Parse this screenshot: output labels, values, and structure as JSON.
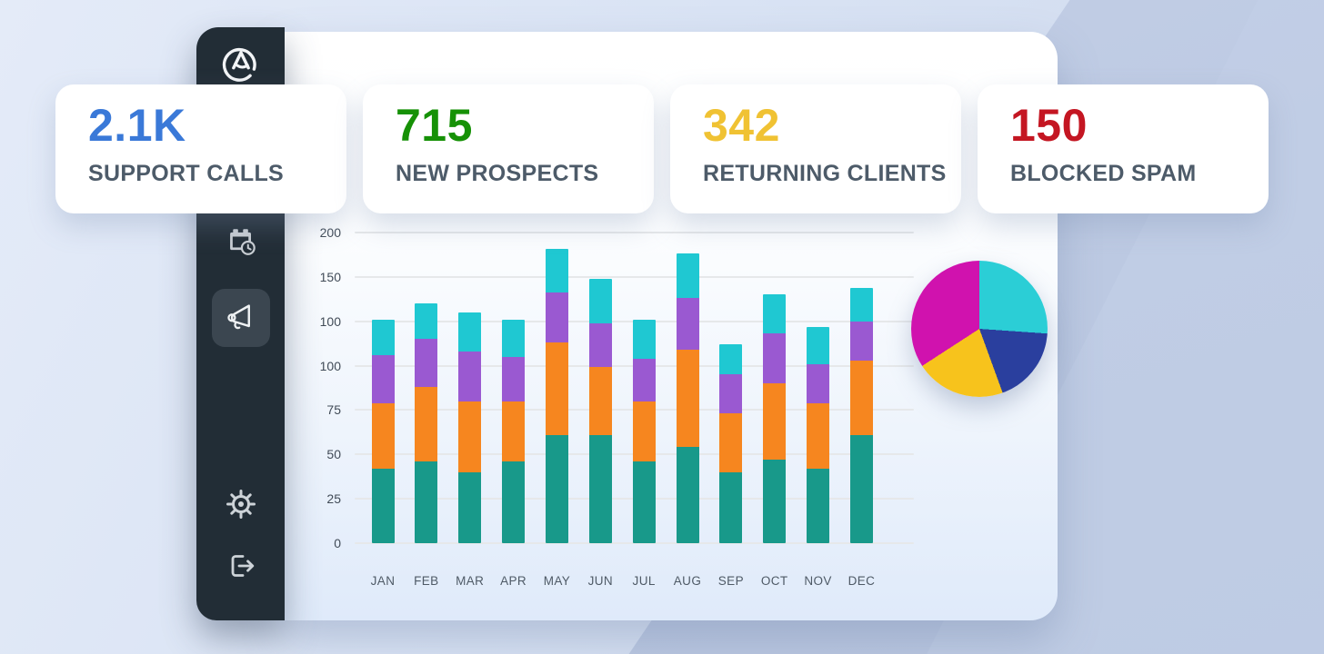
{
  "sidebar": {
    "background": "#222d36",
    "active_item_background": "#3b4650",
    "icon_color": "#cdd3d8",
    "items": [
      {
        "icon": "brand-logo-icon",
        "active": false
      },
      {
        "icon": "calendar-clock-icon",
        "active": false
      },
      {
        "icon": "megaphone-icon",
        "active": true
      },
      {
        "icon": "gear-icon",
        "active": false
      },
      {
        "icon": "logout-icon",
        "active": false
      }
    ]
  },
  "stat_cards": [
    {
      "value": "2.1K",
      "label": "SUPPORT CALLS",
      "color": "#3a79d8"
    },
    {
      "value": "715",
      "label": "NEW PROSPECTS",
      "color": "#169106"
    },
    {
      "value": "342",
      "label": "RETURNING CLIENTS",
      "color": "#f0c233"
    },
    {
      "value": "150",
      "label": "BLOCKED SPAM",
      "color": "#c41622"
    }
  ],
  "chart_data": [
    {
      "type": "bar",
      "stacked": true,
      "title": "",
      "xlabel": "",
      "ylabel": "",
      "grid": true,
      "legend": "none",
      "y_tick_labels_top_to_bottom": [
        "200",
        "150",
        "100",
        "100",
        "75",
        "50",
        "25",
        "0"
      ],
      "axis_note": "8 evenly spaced gridlines; tick labels shown verbatim (the value 100 appears twice); bar heights measured on a 0-175 linear scale where each gridline step = 25",
      "axis_unit_max": 175,
      "categories": [
        "JAN",
        "FEB",
        "MAR",
        "APR",
        "MAY",
        "JUN",
        "JUL",
        "AUG",
        "SEP",
        "OCT",
        "NOV",
        "DEC"
      ],
      "series": [
        {
          "name": "teal-bottom-segment",
          "color": "#18998a",
          "values": [
            42,
            46,
            40,
            46,
            61,
            61,
            46,
            54,
            40,
            47,
            42,
            61
          ]
        },
        {
          "name": "orange-segment",
          "color": "#f6861f",
          "values": [
            37,
            42,
            40,
            34,
            52,
            38,
            34,
            55,
            33,
            43,
            37,
            42
          ]
        },
        {
          "name": "purple-segment",
          "color": "#9a59d1",
          "values": [
            27,
            27,
            28,
            25,
            28,
            25,
            24,
            29,
            22,
            28,
            22,
            22
          ]
        },
        {
          "name": "cyan-top-segment",
          "color": "#1fc8d2",
          "values": [
            20,
            20,
            22,
            21,
            25,
            25,
            22,
            25,
            17,
            22,
            21,
            19
          ]
        }
      ],
      "totals": [
        126,
        135,
        130,
        126,
        166,
        149,
        126,
        163,
        112,
        140,
        122,
        144
      ]
    },
    {
      "type": "pie",
      "title": "",
      "legend": "none",
      "slices": [
        {
          "name": "cyan-slice",
          "color": "#2bced6",
          "start_deg": 0,
          "end_deg": 94,
          "percent": 26.1
        },
        {
          "name": "blue-slice",
          "color": "#2a3f9e",
          "start_deg": 94,
          "end_deg": 160,
          "percent": 18.3
        },
        {
          "name": "yellow-slice",
          "color": "#f7c31c",
          "start_deg": 160,
          "end_deg": 237,
          "percent": 21.4
        },
        {
          "name": "magenta-slice",
          "color": "#d012ae",
          "start_deg": 237,
          "end_deg": 360,
          "percent": 34.2
        }
      ]
    }
  ]
}
